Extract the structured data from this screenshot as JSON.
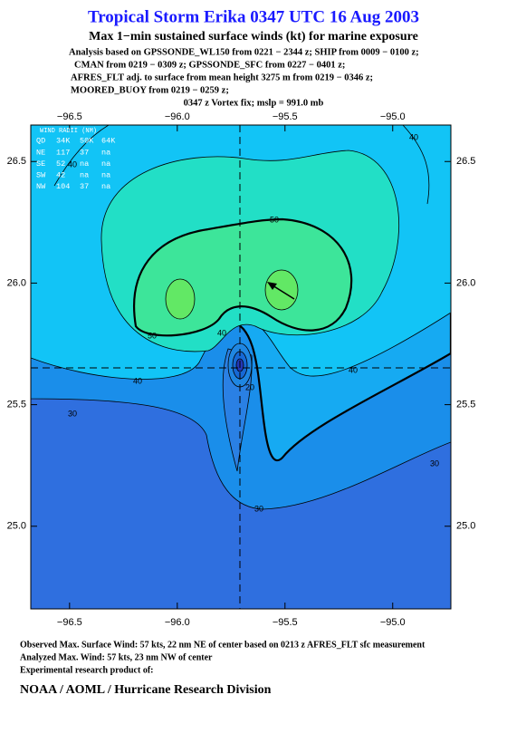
{
  "header": {
    "title": "Tropical Storm Erika 0347 UTC 16 Aug 2003",
    "subtitle": "Max 1−min sustained surface winds (kt) for marine exposure",
    "lines": [
      "Analysis based on  GPSSONDE_WL150 from 0221 − 2344 z;  SHIP from 0009 − 0100 z;",
      "CMAN from 0219 − 0309 z;  GPSSONDE_SFC from 0227 − 0401 z;",
      "AFRES_FLT adj. to surface from mean height 3275 m from 0219 − 0346 z;",
      "MOORED_BUOY from 0219 − 0259 z;",
      "0347 z Vortex fix; mslp = 991.0 mb"
    ]
  },
  "map": {
    "xlim": [
      -96.68,
      -94.73
    ],
    "ylim": [
      24.66,
      26.65
    ],
    "xticks": [
      {
        "value": -96.5,
        "label": "−96.5"
      },
      {
        "value": -96.0,
        "label": "−96.0"
      },
      {
        "value": -95.5,
        "label": "−95.5"
      },
      {
        "value": -95.0,
        "label": "−95.0"
      }
    ],
    "yticks": [
      {
        "value": 25.0,
        "label": "25.0"
      },
      {
        "value": 25.5,
        "label": "25.5"
      },
      {
        "value": 26.0,
        "label": "26.0"
      },
      {
        "value": 26.5,
        "label": "26.5"
      }
    ],
    "contour_labels": [
      "40",
      "40",
      "50",
      "50",
      "40",
      "40",
      "40",
      "30",
      "30",
      "20",
      "30"
    ],
    "wind_radii": {
      "title": "WIND RADII (NM)",
      "header": [
        "QD",
        "34K",
        "50K",
        "64K"
      ],
      "rows": [
        [
          "NE",
          "117",
          "37",
          "na"
        ],
        [
          "SE",
          "52",
          "na",
          "na"
        ],
        [
          "SW",
          "42",
          "na",
          "na"
        ],
        [
          "NW",
          "104",
          "37",
          "na"
        ]
      ]
    }
  },
  "footer": {
    "lines": [
      "Observed Max. Surface Wind: 57 kts, 22 nm NE of center based on 0213 z AFRES_FLT sfc measurement",
      "Analyzed Max. Wind: 57 kts, 23 nm NW of center",
      "Experimental research product of:"
    ],
    "org": "NOAA / AOML / Hurricane Research Division"
  }
}
